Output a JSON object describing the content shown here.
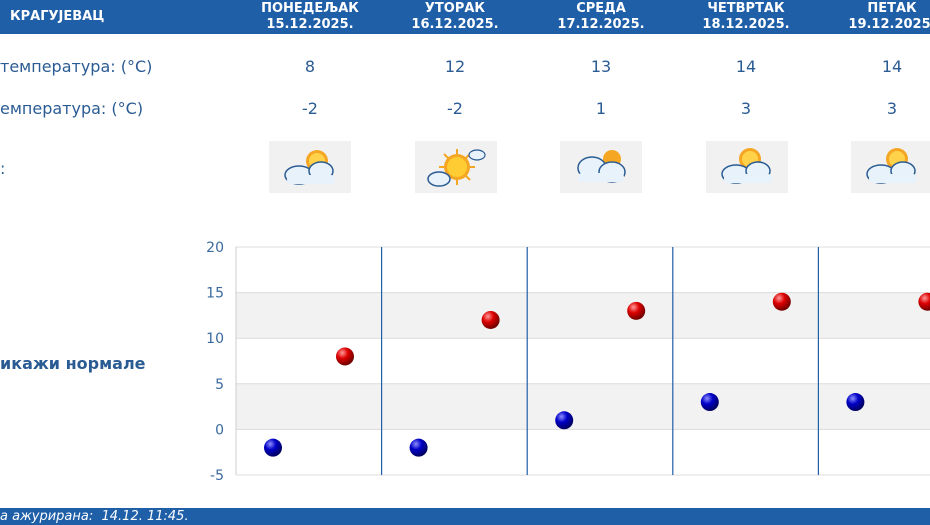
{
  "header": {
    "city": "КРАГУЈЕВАЦ",
    "days": [
      {
        "name": "ПОНЕДЕЉАК",
        "date": "15.12.2025."
      },
      {
        "name": "УТОРАК",
        "date": "16.12.2025."
      },
      {
        "name": "СРЕДА",
        "date": "17.12.2025."
      },
      {
        "name": "ЧЕТВРТАК",
        "date": "18.12.2025."
      },
      {
        "name": "ПЕТАК",
        "date": "19.12.2025."
      }
    ]
  },
  "rows": {
    "max_label": "температура: (°C)",
    "min_label": "емпература: (°C)",
    "icon_label": ":"
  },
  "max_temps": [
    "8",
    "12",
    "13",
    "14",
    "14"
  ],
  "min_temps": [
    "-2",
    "-2",
    "1",
    "3",
    "3"
  ],
  "icons": [
    "partly-cloudy-icon",
    "sunny-with-cloud-icon",
    "mostly-cloudy-icon",
    "partly-cloudy-icon",
    "partly-cloudy-icon"
  ],
  "toggle_normals": "икажи нормале",
  "footer": "а ажурирана:  14.12. 11:45.",
  "colors": {
    "header": "#1f5fa8",
    "text": "#2a5b93",
    "max_point": "#cc0000",
    "min_point": "#0000b0"
  },
  "chart_data": {
    "type": "scatter",
    "ylim": [
      -5,
      20
    ],
    "yticks": [
      "20",
      "15",
      "10",
      "5",
      "0",
      "-5"
    ],
    "series": [
      {
        "values": [
          8,
          12,
          13,
          14,
          14
        ]
      },
      {
        "values": [
          -2,
          -2,
          1,
          3,
          3
        ]
      }
    ]
  }
}
